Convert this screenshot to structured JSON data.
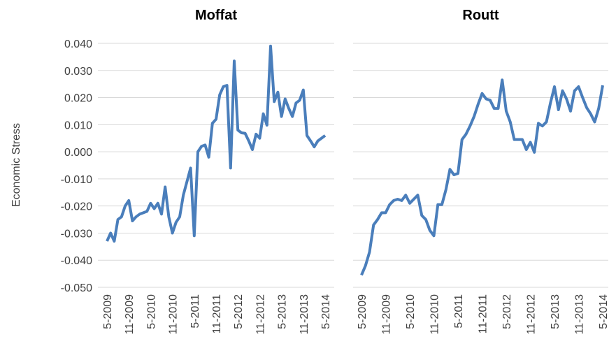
{
  "chart_data": [
    {
      "type": "line",
      "title": "Moffat",
      "ylabel": "Economic Stress",
      "categories": [
        "5-2009",
        null,
        null,
        null,
        null,
        null,
        "11-2009",
        null,
        null,
        null,
        null,
        null,
        "5-2010",
        null,
        null,
        null,
        null,
        null,
        "11-2010",
        null,
        null,
        null,
        null,
        null,
        "5-2011",
        null,
        null,
        null,
        null,
        null,
        "11-2011",
        null,
        null,
        null,
        null,
        null,
        "5-2012",
        null,
        null,
        null,
        null,
        null,
        "11-2012",
        null,
        null,
        null,
        null,
        null,
        "5-2013",
        null,
        null,
        null,
        null,
        null,
        "11-2013",
        null,
        null,
        null,
        null,
        null,
        "5-2014"
      ],
      "series": [
        {
          "name": "Moffat",
          "color": "#4a7ebb",
          "values": [
            -0.033,
            -0.03,
            -0.033,
            -0.025,
            -0.024,
            -0.02,
            -0.018,
            -0.0255,
            -0.024,
            -0.023,
            -0.0225,
            -0.022,
            -0.019,
            -0.021,
            -0.019,
            -0.023,
            -0.013,
            -0.024,
            -0.03,
            -0.026,
            -0.024,
            -0.016,
            -0.011,
            -0.006,
            -0.031,
            0.0,
            0.002,
            0.0025,
            -0.002,
            0.0105,
            0.012,
            0.021,
            0.024,
            0.0245,
            -0.006,
            0.0335,
            0.008,
            0.007,
            0.0068,
            0.004,
            0.0008,
            0.0065,
            0.005,
            0.014,
            0.0098,
            0.039,
            0.0185,
            0.022,
            0.013,
            0.0195,
            0.016,
            0.013,
            0.018,
            0.019,
            0.0228,
            0.006,
            0.004,
            0.0018,
            0.004,
            0.005,
            0.006
          ]
        }
      ],
      "ylim": [
        -0.05,
        0.04
      ],
      "yticks": [
        {
          "value": -0.05,
          "label": "-0.050"
        },
        {
          "value": -0.04,
          "label": "-0.040"
        },
        {
          "value": -0.03,
          "label": "-0.030"
        },
        {
          "value": -0.02,
          "label": "-0.020"
        },
        {
          "value": -0.01,
          "label": "-0.010"
        },
        {
          "value": 0,
          "label": "0.000"
        },
        {
          "value": 0.01,
          "label": "0.010"
        },
        {
          "value": 0.02,
          "label": "0.020"
        },
        {
          "value": 0.03,
          "label": "0.030"
        },
        {
          "value": 0.04,
          "label": "0.040"
        }
      ],
      "grid": true
    },
    {
      "type": "line",
      "title": "Routt",
      "categories": [
        "5-2009",
        null,
        null,
        null,
        null,
        null,
        "11-2009",
        null,
        null,
        null,
        null,
        null,
        "5-2010",
        null,
        null,
        null,
        null,
        null,
        "11-2010",
        null,
        null,
        null,
        null,
        null,
        "5-2011",
        null,
        null,
        null,
        null,
        null,
        "11-2011",
        null,
        null,
        null,
        null,
        null,
        "5-2012",
        null,
        null,
        null,
        null,
        null,
        "11-2012",
        null,
        null,
        null,
        null,
        null,
        "5-2013",
        null,
        null,
        null,
        null,
        null,
        "11-2013",
        null,
        null,
        null,
        null,
        null,
        "5-2014"
      ],
      "series": [
        {
          "name": "Routt",
          "color": "#4a7ebb",
          "values": [
            -0.0455,
            -0.042,
            -0.037,
            -0.027,
            -0.025,
            -0.0225,
            -0.0225,
            -0.0195,
            -0.018,
            -0.0175,
            -0.018,
            -0.016,
            -0.019,
            -0.0175,
            -0.016,
            -0.0235,
            -0.025,
            -0.029,
            -0.031,
            -0.0195,
            -0.0195,
            -0.014,
            -0.0065,
            -0.0085,
            -0.008,
            0.0045,
            0.0065,
            0.0095,
            0.013,
            0.0175,
            0.0215,
            0.0195,
            0.019,
            0.016,
            0.016,
            0.0265,
            0.015,
            0.011,
            0.0045,
            0.0045,
            0.0045,
            0.0008,
            0.0035,
            -0.0002,
            0.0105,
            0.0095,
            0.011,
            0.018,
            0.024,
            0.0155,
            0.0225,
            0.0195,
            0.015,
            0.0225,
            0.024,
            0.02,
            0.0163,
            0.014,
            0.011,
            0.016,
            0.0245
          ]
        }
      ],
      "ylim": [
        -0.05,
        0.04
      ],
      "yticks": [
        -0.05,
        -0.04,
        -0.03,
        -0.02,
        -0.01,
        0,
        0.01,
        0.02,
        0.03,
        0.04
      ],
      "grid": true
    }
  ]
}
